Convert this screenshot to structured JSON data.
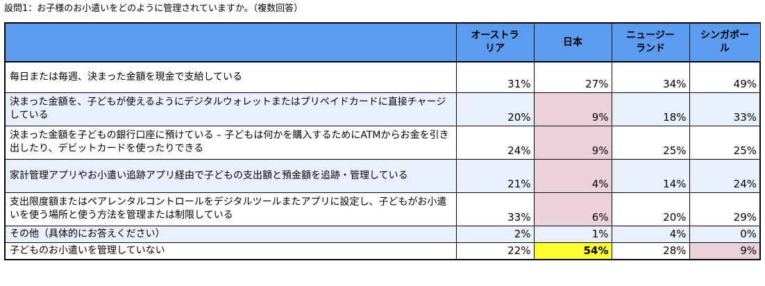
{
  "title": "設問1：お子様のお小遣いをどのように管理されていますか。（複数回答）",
  "colors": {
    "header_bg": "#5b9bf0",
    "alt_row_bg": "#eaf0fb",
    "low_value_bg": "#ead1dc",
    "top_value_bg": "#ffff33"
  },
  "chart_data": {
    "type": "table",
    "title": "設問1：お子様のお小遣いをどのように管理されていますか。（複数回答）",
    "columns": [
      "",
      "オーストラリア",
      "日本",
      "ニュージーランド",
      "シンガポール"
    ],
    "rows": [
      {
        "label": "毎日または毎週、決まった金額を現金で支給している",
        "values": [
          "31%",
          "27%",
          "34%",
          "49%"
        ]
      },
      {
        "label": "決まった金額を、子どもが使えるようにデジタルウォレットまたはプリペイドカードに直接チャージしている",
        "values": [
          "20%",
          "9%",
          "18%",
          "33%"
        ]
      },
      {
        "label": "決まった金額を子どもの銀行口座に預けている – 子どもは何かを購入するためにATMからお金を引き出したり、デビットカードを使ったりできる",
        "values": [
          "24%",
          "9%",
          "25%",
          "25%"
        ]
      },
      {
        "label": "家計管理アプリやお小遣い追跡アプリ経由で子どもの支出額と預金額を追跡・管理している",
        "values": [
          "21%",
          "4%",
          "14%",
          "24%"
        ]
      },
      {
        "label": "支出限度額またはペアレンタルコントロールをデジタルツールまたアプリに設定し、子どもがお小遣いを使う場所と使う方法を管理または制限している",
        "values": [
          "33%",
          "6%",
          "20%",
          "29%"
        ]
      },
      {
        "label": "その他（具体的にお答えください）",
        "values": [
          "2%",
          "1%",
          "4%",
          "0%"
        ]
      },
      {
        "label": "子どものお小遣いを管理していない",
        "values": [
          "22%",
          "54%",
          "28%",
          "9%"
        ]
      }
    ]
  }
}
